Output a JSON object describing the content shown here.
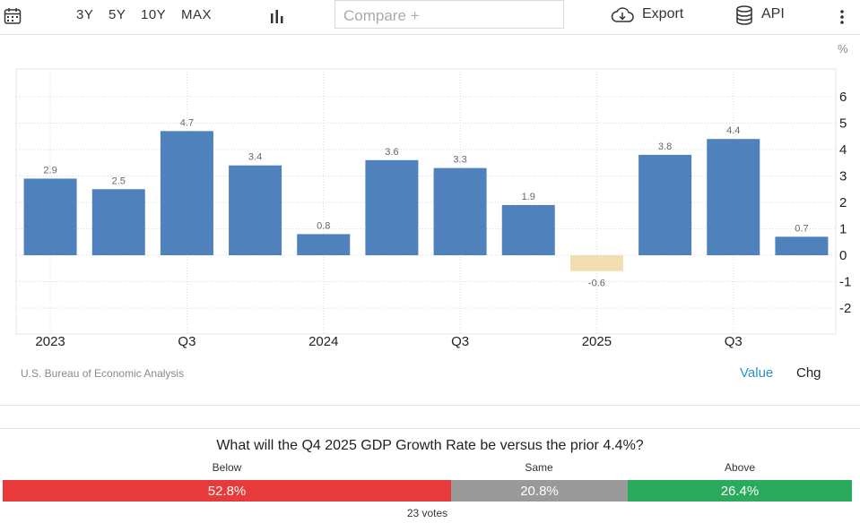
{
  "toolbar": {
    "ranges": [
      "3Y",
      "5Y",
      "10Y",
      "MAX"
    ],
    "compare_placeholder": "Compare +",
    "export_label": "Export",
    "api_label": "API"
  },
  "chart_data": {
    "type": "bar",
    "unit_label": "%",
    "categories": [
      "2023 Q1",
      "2023 Q2",
      "2023 Q3",
      "2023 Q4",
      "2024 Q1",
      "2024 Q2",
      "2024 Q3",
      "2024 Q4",
      "2025 Q1",
      "2025 Q2",
      "2025 Q3",
      "2025 Q4"
    ],
    "values": [
      2.9,
      2.5,
      4.7,
      3.4,
      0.8,
      3.6,
      3.3,
      1.9,
      -0.6,
      3.8,
      4.4,
      0.7
    ],
    "x_tick_labels": [
      {
        "index": 0,
        "label": "2023"
      },
      {
        "index": 2,
        "label": "Q3"
      },
      {
        "index": 4,
        "label": "2024"
      },
      {
        "index": 6,
        "label": "Q3"
      },
      {
        "index": 8,
        "label": "2025"
      },
      {
        "index": 10,
        "label": "Q3"
      }
    ],
    "y_ticks": [
      6,
      5,
      4,
      3,
      2,
      1,
      0,
      -1,
      -2
    ],
    "ylim": [
      -2.9,
      7.0
    ],
    "positive_color": "#4f81bd",
    "negative_color": "#f2deb0",
    "source": "U.S. Bureau of Economic Analysis"
  },
  "view_toggle": {
    "value_label": "Value",
    "chg_label": "Chg",
    "active_color": "#2a8fd1"
  },
  "poll": {
    "question": "What will the Q4 2025 GDP Growth Rate be versus the prior 4.4%?",
    "options": [
      {
        "label": "Below",
        "percent_text": "52.8%",
        "share": 0.528,
        "color": "#e8393b"
      },
      {
        "label": "Same",
        "percent_text": "20.8%",
        "share": 0.208,
        "color": "#999999"
      },
      {
        "label": "Above",
        "percent_text": "26.4%",
        "share": 0.264,
        "color": "#2aaa5c"
      }
    ],
    "votes_text": "23 votes"
  }
}
